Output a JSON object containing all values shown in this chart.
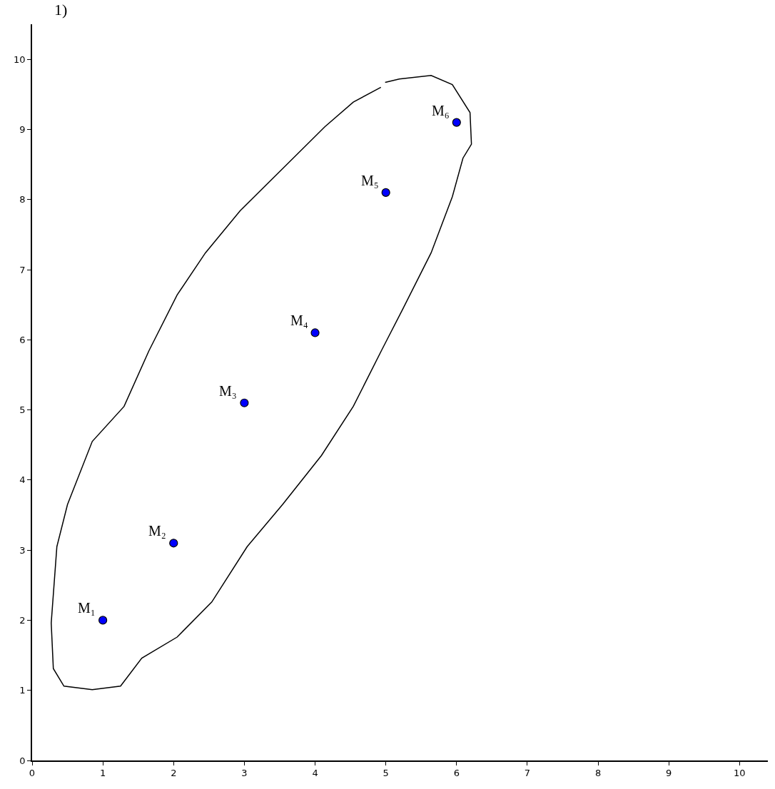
{
  "chart_data": {
    "type": "scatter",
    "title": "1)",
    "xlim": [
      0,
      10.4
    ],
    "ylim": [
      0,
      10.5
    ],
    "xticks": [
      0,
      1,
      2,
      3,
      4,
      5,
      6,
      7,
      8,
      9,
      10
    ],
    "yticks": [
      0,
      1,
      2,
      3,
      4,
      5,
      6,
      7,
      8,
      9,
      10
    ],
    "series": [
      {
        "color": "#0000ff",
        "marker": "circle",
        "x": [
          1,
          2,
          3,
          4,
          5,
          6
        ],
        "values": [
          2,
          3.1,
          5.1,
          6.1,
          8.1,
          9.1
        ]
      },
      {
        "type": "line",
        "color": "#000000",
        "marker": "none",
        "line_style": "solid",
        "x": [
          4.99,
          5.19,
          5.64,
          5.94,
          6.19,
          6.21,
          6.09,
          5.94,
          5.64,
          5.24,
          4.94,
          4.54,
          4.09,
          3.54,
          3.04,
          2.54,
          2.05,
          1.55,
          1.25,
          0.85,
          0.45,
          0.3,
          0.27,
          0.35,
          0.5,
          0.85,
          1.3,
          1.65,
          2.05,
          2.45,
          2.94,
          3.54,
          4.14,
          4.54,
          4.93
        ],
        "values": [
          9.67,
          9.72,
          9.77,
          9.64,
          9.24,
          8.79,
          8.59,
          8.04,
          7.24,
          6.44,
          5.85,
          5.05,
          4.35,
          3.65,
          3.05,
          2.26,
          1.76,
          1.46,
          1.06,
          1.01,
          1.06,
          1.31,
          1.96,
          3.05,
          3.65,
          4.55,
          5.05,
          5.84,
          6.64,
          7.24,
          7.84,
          8.44,
          9.04,
          9.39,
          9.6
        ]
      }
    ],
    "annotations": [
      {
        "text": "M₁",
        "x": 1,
        "y": 2
      },
      {
        "text": "M₂",
        "x": 2,
        "y": 3.1
      },
      {
        "text": "M₃",
        "x": 3,
        "y": 5.1
      },
      {
        "text": "M₄",
        "x": 4,
        "y": 6.1
      },
      {
        "text": "M₅",
        "x": 5,
        "y": 8.1
      },
      {
        "text": "M₆",
        "x": 6,
        "y": 9.1
      }
    ]
  }
}
